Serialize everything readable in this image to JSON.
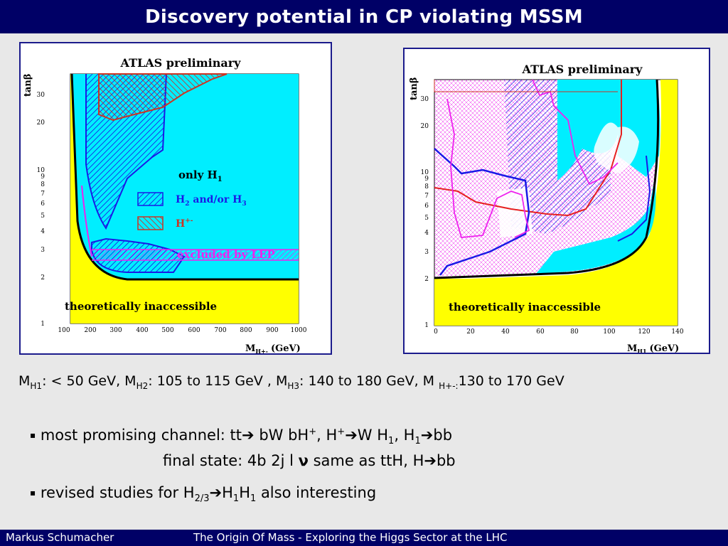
{
  "slide_title": "Discovery potential in CP violating MSSM",
  "left_plot": {
    "header": "ATLAS preliminary",
    "ylabel": "tanβ",
    "xlabel_main": "M",
    "xlabel_sub": "H+-",
    "xlabel_unit": "(GeV)",
    "yticks": [
      "1",
      "2",
      "3",
      "4",
      "5",
      "6",
      "7",
      "8",
      "9",
      "10",
      "20",
      "30"
    ],
    "xticks": [
      "100",
      "200",
      "300",
      "400",
      "500",
      "600",
      "700",
      "800",
      "900",
      "1000"
    ],
    "legend_only": "only H",
    "legend_only_sub": "1",
    "legend_h23_a": "H",
    "legend_h23_sub": "2",
    "legend_h23_b": " and/or H",
    "legend_h23_sub2": "3",
    "legend_hpm": "H",
    "legend_hpm_sup": "+-",
    "lep_text": "excluded by LEP",
    "theo_text": "theoretically inaccessible"
  },
  "right_plot": {
    "header": "ATLAS preliminary",
    "ylabel": "tanβ",
    "xlabel_main": "M",
    "xlabel_sub": "H1",
    "xlabel_unit": "(GeV)",
    "yticks": [
      "1",
      "2",
      "3",
      "4",
      "5",
      "6",
      "7",
      "8",
      "9",
      "10",
      "20",
      "30"
    ],
    "xticks": [
      "0",
      "20",
      "40",
      "60",
      "80",
      "100",
      "120",
      "140"
    ],
    "theo_text": "theoretically inaccessible"
  },
  "mass_line": {
    "p1": "M",
    "s1": "H1",
    "p2": ": < 50 GeV, M",
    "s2": "H2",
    "p3": ": 105 to 115 GeV ,  M",
    "s3": "H3",
    "p4": ": 140 to 180 GeV, M ",
    "s4": "H+-:",
    "p5": "130 to 170 GeV"
  },
  "bullet_marker": "▪",
  "bullet1": {
    "t1": " most promising channel: tt",
    "arrow1": "➔",
    "t2": " bW bH",
    "sup1": "+",
    "t3": ", H",
    "sup2": "+",
    "arrow2": "➔",
    "t4": "W H",
    "sub1": "1",
    "t5": ", H",
    "sub2": "1",
    "arrow3": "➔",
    "t6": "bb"
  },
  "final_state": {
    "t1": "final state: 4b 2j l ",
    "nu": "ν",
    "t2": " same as ttH, H",
    "arrow": "➔",
    "t3": "bb"
  },
  "bullet2": {
    "t1": " revised studies for H",
    "sub1": "2/3",
    "arrow": "➔",
    "t2": "H",
    "sub2": "1",
    "t3": "H",
    "sub3": "1",
    "t4": " also interesting"
  },
  "footer": {
    "author": "Markus  Schumacher",
    "talk": "The Origin Of Mass - Exploring the Higgs Sector at the LHC"
  },
  "colors": {
    "title_bg": "#000066",
    "cyan": "#00eeff",
    "yellow": "#ffff00",
    "blue_contour": "#1a1ae6",
    "red_contour": "#cc3322",
    "magenta": "#ee22ee"
  }
}
